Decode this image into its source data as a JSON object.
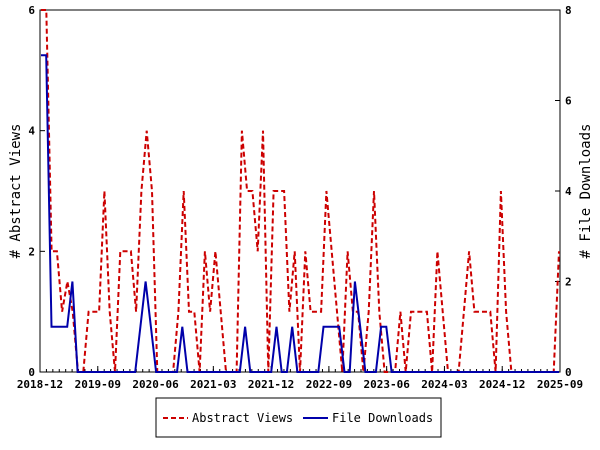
{
  "chart_data": {
    "type": "line",
    "title": "",
    "xlabel": "",
    "ylabel": "# Abstract Views",
    "y2label": "# File Downloads",
    "ylim": [
      0,
      6
    ],
    "y2lim": [
      0,
      8
    ],
    "yticks": [
      "0",
      "2",
      "4",
      "6"
    ],
    "y2ticks": [
      "0",
      "2",
      "4",
      "6",
      "8"
    ],
    "xlim": [
      "2018-12",
      "2025-09"
    ],
    "xticks": [
      "2018-12",
      "2019-09",
      "2020-06",
      "2021-03",
      "2021-12",
      "2022-09",
      "2023-06",
      "2024-03",
      "2024-12",
      "2025-09"
    ],
    "grid": false,
    "legend_position": "bottom",
    "series": [
      {
        "name": "Abstract Views",
        "axis": "left",
        "color": "#cc0000",
        "style": "dashed",
        "values": [
          6,
          6,
          2,
          2,
          1,
          1.5,
          1,
          0,
          0,
          1,
          1,
          1,
          3,
          1,
          0,
          2,
          2,
          2,
          1,
          3,
          4,
          3,
          0,
          0,
          0,
          0,
          1,
          3,
          1,
          1,
          0,
          2,
          1,
          2,
          1,
          0,
          0,
          0,
          4,
          3,
          3,
          2,
          4,
          0,
          3,
          3,
          3,
          1,
          2,
          0,
          2,
          1,
          1,
          1,
          3,
          2,
          1,
          0,
          2,
          1,
          1,
          0,
          1,
          3,
          1,
          0,
          0,
          0,
          1,
          0,
          1,
          1,
          1,
          1,
          0,
          2,
          1,
          0,
          0,
          0,
          1,
          2,
          1,
          1,
          1,
          1,
          0,
          3,
          1,
          0,
          0,
          0,
          0,
          0,
          0,
          0,
          0,
          0,
          2
        ]
      },
      {
        "name": "File Downloads",
        "axis": "right",
        "color": "#0000aa",
        "style": "solid",
        "values": [
          7,
          7,
          1,
          1,
          1,
          1,
          2,
          0,
          0,
          0,
          0,
          0,
          0,
          0,
          0,
          0,
          0,
          0,
          0,
          1,
          2,
          1,
          0,
          0,
          0,
          0,
          0,
          1,
          0,
          0,
          0,
          0,
          0,
          0,
          0,
          0,
          0,
          0,
          0,
          1,
          0,
          0,
          0,
          0,
          0,
          1,
          0,
          0,
          1,
          0,
          0,
          0,
          0,
          0,
          1,
          1,
          1,
          1,
          0,
          0,
          2,
          1,
          0,
          0,
          0,
          1,
          1,
          0,
          0,
          0,
          0,
          0,
          0,
          0,
          0,
          0,
          0,
          0,
          0,
          0,
          0,
          0,
          0,
          0,
          0,
          0,
          0,
          0,
          0,
          0,
          0,
          0,
          0,
          0,
          0,
          0,
          0,
          0,
          0,
          0
        ]
      }
    ]
  }
}
